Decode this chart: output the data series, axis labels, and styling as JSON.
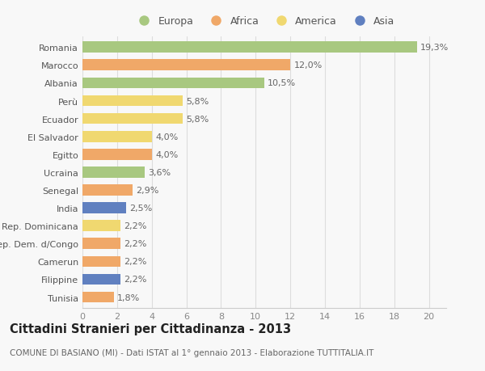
{
  "countries": [
    "Romania",
    "Marocco",
    "Albania",
    "Perù",
    "Ecuador",
    "El Salvador",
    "Egitto",
    "Ucraina",
    "Senegal",
    "India",
    "Rep. Dominicana",
    "Rep. Dem. d/Congo",
    "Camerun",
    "Filippine",
    "Tunisia"
  ],
  "values": [
    19.3,
    12.0,
    10.5,
    5.8,
    5.8,
    4.0,
    4.0,
    3.6,
    2.9,
    2.5,
    2.2,
    2.2,
    2.2,
    2.2,
    1.8
  ],
  "labels": [
    "19,3%",
    "12,0%",
    "10,5%",
    "5,8%",
    "5,8%",
    "4,0%",
    "4,0%",
    "3,6%",
    "2,9%",
    "2,5%",
    "2,2%",
    "2,2%",
    "2,2%",
    "2,2%",
    "1,8%"
  ],
  "continents": [
    "Europa",
    "Africa",
    "Europa",
    "America",
    "America",
    "America",
    "Africa",
    "Europa",
    "Africa",
    "Asia",
    "America",
    "Africa",
    "Africa",
    "Asia",
    "Africa"
  ],
  "colors": {
    "Europa": "#a8c880",
    "Africa": "#f0a868",
    "America": "#f0d870",
    "Asia": "#6080c0"
  },
  "legend_order": [
    "Europa",
    "Africa",
    "America",
    "Asia"
  ],
  "title": "Cittadini Stranieri per Cittadinanza - 2013",
  "subtitle": "COMUNE DI BASIANO (MI) - Dati ISTAT al 1° gennaio 2013 - Elaborazione TUTTITALIA.IT",
  "xlim": [
    0,
    21
  ],
  "xticks": [
    0,
    2,
    4,
    6,
    8,
    10,
    12,
    14,
    16,
    18,
    20
  ],
  "background_color": "#f8f8f8",
  "grid_color": "#dddddd",
  "bar_height": 0.62,
  "label_fontsize": 8,
  "tick_fontsize": 8,
  "title_fontsize": 10.5,
  "subtitle_fontsize": 7.5
}
